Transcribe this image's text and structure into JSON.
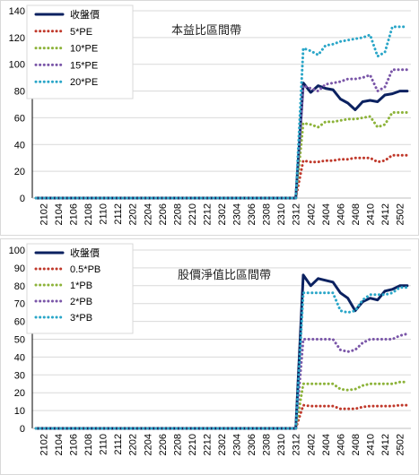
{
  "chart_data": [
    {
      "type": "line",
      "title": "本益比區間帶",
      "xlabel": "",
      "ylabel": "",
      "ylim": [
        0,
        140
      ],
      "yticks": [
        0,
        20,
        40,
        60,
        80,
        100,
        120,
        140
      ],
      "grid": true,
      "legend_position": "top-left",
      "x": [
        "2101",
        "2102",
        "2103",
        "2104",
        "2105",
        "2106",
        "2107",
        "2108",
        "2109",
        "2110",
        "2111",
        "2112",
        "2201",
        "2202",
        "2203",
        "2204",
        "2205",
        "2206",
        "2207",
        "2208",
        "2209",
        "2210",
        "2211",
        "2212",
        "2301",
        "2302",
        "2303",
        "2304",
        "2305",
        "2306",
        "2307",
        "2308",
        "2309",
        "2310",
        "2311",
        "2312",
        "2401",
        "2402",
        "2403",
        "2404",
        "2405",
        "2406",
        "2407",
        "2408",
        "2409",
        "2410",
        "2411",
        "2412",
        "2501",
        "2502",
        "2503"
      ],
      "x_tick_labels": [
        "2102",
        "2104",
        "2106",
        "2108",
        "2110",
        "2112",
        "2202",
        "2204",
        "2206",
        "2208",
        "2210",
        "2212",
        "2302",
        "2304",
        "2306",
        "2308",
        "2310",
        "2312",
        "2402",
        "2404",
        "2406",
        "2408",
        "2410",
        "2412",
        "2502"
      ],
      "series": [
        {
          "name": "收盤價",
          "color": "#0b2160",
          "style": "solid",
          "values": [
            0,
            0,
            0,
            0,
            0,
            0,
            0,
            0,
            0,
            0,
            0,
            0,
            0,
            0,
            0,
            0,
            0,
            0,
            0,
            0,
            0,
            0,
            0,
            0,
            0,
            0,
            0,
            0,
            0,
            0,
            0,
            0,
            0,
            0,
            0,
            0,
            86,
            79,
            84,
            82,
            81,
            74,
            71,
            66,
            72,
            73,
            72,
            77,
            78,
            80,
            80
          ]
        },
        {
          "name": "5*PE",
          "color": "#c0392b",
          "style": "dotted",
          "values": [
            0,
            0,
            0,
            0,
            0,
            0,
            0,
            0,
            0,
            0,
            0,
            0,
            0,
            0,
            0,
            0,
            0,
            0,
            0,
            0,
            0,
            0,
            0,
            0,
            0,
            0,
            0,
            0,
            0,
            0,
            0,
            0,
            0,
            0,
            0,
            0,
            28,
            27,
            27,
            28,
            28,
            29,
            29,
            30,
            30,
            30,
            27,
            28,
            32,
            32,
            32
          ]
        },
        {
          "name": "10*PE",
          "color": "#8db33a",
          "style": "dotted",
          "values": [
            0,
            0,
            0,
            0,
            0,
            0,
            0,
            0,
            0,
            0,
            0,
            0,
            0,
            0,
            0,
            0,
            0,
            0,
            0,
            0,
            0,
            0,
            0,
            0,
            0,
            0,
            0,
            0,
            0,
            0,
            0,
            0,
            0,
            0,
            0,
            0,
            56,
            55,
            53,
            57,
            57,
            58,
            59,
            59,
            60,
            61,
            53,
            55,
            64,
            64,
            64
          ]
        },
        {
          "name": "15*PE",
          "color": "#7a56a8",
          "style": "dotted",
          "values": [
            0,
            0,
            0,
            0,
            0,
            0,
            0,
            0,
            0,
            0,
            0,
            0,
            0,
            0,
            0,
            0,
            0,
            0,
            0,
            0,
            0,
            0,
            0,
            0,
            0,
            0,
            0,
            0,
            0,
            0,
            0,
            0,
            0,
            0,
            0,
            0,
            84,
            82,
            80,
            85,
            86,
            87,
            89,
            89,
            90,
            92,
            80,
            83,
            96,
            96,
            96
          ]
        },
        {
          "name": "20*PE",
          "color": "#2aa6c8",
          "style": "dotted",
          "values": [
            0,
            0,
            0,
            0,
            0,
            0,
            0,
            0,
            0,
            0,
            0,
            0,
            0,
            0,
            0,
            0,
            0,
            0,
            0,
            0,
            0,
            0,
            0,
            0,
            0,
            0,
            0,
            0,
            0,
            0,
            0,
            0,
            0,
            0,
            0,
            0,
            112,
            110,
            107,
            114,
            115,
            117,
            118,
            119,
            120,
            122,
            106,
            109,
            128,
            128,
            128
          ]
        }
      ]
    },
    {
      "type": "line",
      "title": "股價淨值比區間帶",
      "xlabel": "",
      "ylabel": "",
      "ylim": [
        0,
        100
      ],
      "yticks": [
        0,
        10,
        20,
        30,
        40,
        50,
        60,
        70,
        80,
        90,
        100
      ],
      "grid": true,
      "legend_position": "top-left",
      "x": [
        "2101",
        "2102",
        "2103",
        "2104",
        "2105",
        "2106",
        "2107",
        "2108",
        "2109",
        "2110",
        "2111",
        "2112",
        "2201",
        "2202",
        "2203",
        "2204",
        "2205",
        "2206",
        "2207",
        "2208",
        "2209",
        "2210",
        "2211",
        "2212",
        "2301",
        "2302",
        "2303",
        "2304",
        "2305",
        "2306",
        "2307",
        "2308",
        "2309",
        "2310",
        "2311",
        "2312",
        "2401",
        "2402",
        "2403",
        "2404",
        "2405",
        "2406",
        "2407",
        "2408",
        "2409",
        "2410",
        "2411",
        "2412",
        "2501",
        "2502",
        "2503"
      ],
      "x_tick_labels": [
        "2102",
        "2104",
        "2106",
        "2108",
        "2110",
        "2112",
        "2202",
        "2204",
        "2206",
        "2208",
        "2210",
        "2212",
        "2302",
        "2304",
        "2306",
        "2308",
        "2310",
        "2312",
        "2402",
        "2404",
        "2406",
        "2408",
        "2410",
        "2412",
        "2502"
      ],
      "series": [
        {
          "name": "收盤價",
          "color": "#0b2160",
          "style": "solid",
          "values": [
            0,
            0,
            0,
            0,
            0,
            0,
            0,
            0,
            0,
            0,
            0,
            0,
            0,
            0,
            0,
            0,
            0,
            0,
            0,
            0,
            0,
            0,
            0,
            0,
            0,
            0,
            0,
            0,
            0,
            0,
            0,
            0,
            0,
            0,
            0,
            0,
            86,
            80,
            84,
            83,
            82,
            76,
            73,
            66,
            71,
            73,
            72,
            77,
            78,
            80,
            80
          ]
        },
        {
          "name": "0.5*PB",
          "color": "#c0392b",
          "style": "dotted",
          "values": [
            0,
            0,
            0,
            0,
            0,
            0,
            0,
            0,
            0,
            0,
            0,
            0,
            0,
            0,
            0,
            0,
            0,
            0,
            0,
            0,
            0,
            0,
            0,
            0,
            0,
            0,
            0,
            0,
            0,
            0,
            0,
            0,
            0,
            0,
            0,
            0,
            13,
            12.5,
            12.5,
            12.5,
            12.5,
            11,
            11,
            11,
            12,
            12.5,
            12.5,
            12.5,
            12.5,
            13,
            13
          ]
        },
        {
          "name": "1*PB",
          "color": "#8db33a",
          "style": "dotted",
          "values": [
            0,
            0,
            0,
            0,
            0,
            0,
            0,
            0,
            0,
            0,
            0,
            0,
            0,
            0,
            0,
            0,
            0,
            0,
            0,
            0,
            0,
            0,
            0,
            0,
            0,
            0,
            0,
            0,
            0,
            0,
            0,
            0,
            0,
            0,
            0,
            0,
            25,
            25,
            25,
            25,
            25,
            22,
            21.5,
            22,
            24,
            25,
            25,
            25,
            25,
            26,
            26
          ]
        },
        {
          "name": "2*PB",
          "color": "#7a56a8",
          "style": "dotted",
          "values": [
            0,
            0,
            0,
            0,
            0,
            0,
            0,
            0,
            0,
            0,
            0,
            0,
            0,
            0,
            0,
            0,
            0,
            0,
            0,
            0,
            0,
            0,
            0,
            0,
            0,
            0,
            0,
            0,
            0,
            0,
            0,
            0,
            0,
            0,
            0,
            0,
            50,
            50,
            50,
            50,
            50,
            44,
            43,
            44,
            48,
            50,
            50,
            50,
            50,
            52,
            53
          ]
        },
        {
          "name": "3*PB",
          "color": "#2aa6c8",
          "style": "dotted",
          "values": [
            0,
            0,
            0,
            0,
            0,
            0,
            0,
            0,
            0,
            0,
            0,
            0,
            0,
            0,
            0,
            0,
            0,
            0,
            0,
            0,
            0,
            0,
            0,
            0,
            0,
            0,
            0,
            0,
            0,
            0,
            0,
            0,
            0,
            0,
            0,
            0,
            76,
            76,
            76,
            76,
            76,
            66,
            65,
            66,
            72,
            75,
            75,
            75,
            76,
            79,
            79
          ]
        }
      ]
    }
  ]
}
